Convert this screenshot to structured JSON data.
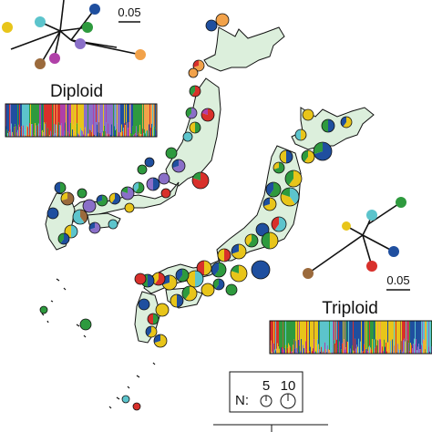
{
  "palette": {
    "yellow": "#e8c51a",
    "blue": "#1f4f9f",
    "green": "#2e9a3e",
    "red": "#d8302b",
    "cyan": "#5cc4cc",
    "orange": "#f2a24a",
    "purple": "#8a6fc8",
    "brown": "#9b6a3c",
    "magenta": "#b040a8",
    "land": "#dcefdc"
  },
  "diploid": {
    "title": "Diploid",
    "scale_label": "0.05",
    "tree_tips": [
      "cyan",
      "green",
      "blue",
      "yellow",
      "brown",
      "magenta",
      "purple",
      "orange"
    ]
  },
  "triploid": {
    "title": "Triploid",
    "scale_label": "0.05",
    "tree_tips": [
      "green",
      "cyan",
      "blue",
      "red",
      "brown"
    ]
  },
  "legend": {
    "n_label": "N:",
    "sizes": [
      "5",
      "10"
    ]
  }
}
